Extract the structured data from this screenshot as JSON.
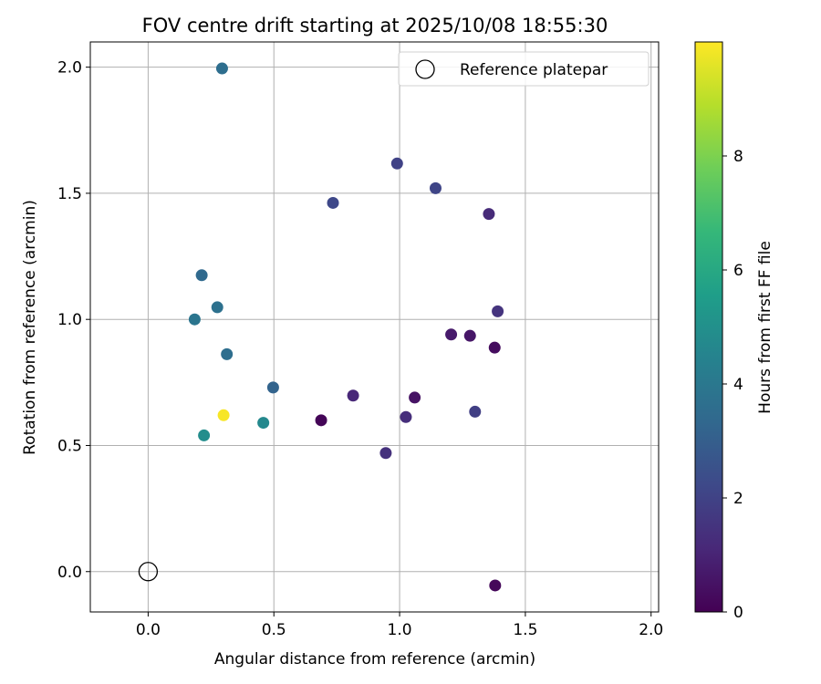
{
  "chart_data": {
    "type": "scatter",
    "title": "FOV centre drift starting at 2025/10/08 18:55:30",
    "xlabel": "Angular distance from reference (arcmin)",
    "ylabel": "Rotation from reference (arcmin)",
    "xlim": [
      -0.23,
      2.03
    ],
    "ylim": [
      -0.16,
      2.1
    ],
    "xticks": [
      0.0,
      0.5,
      1.0,
      1.5,
      2.0
    ],
    "xtick_labels": [
      "0.0",
      "0.5",
      "1.0",
      "1.5",
      "2.0"
    ],
    "yticks": [
      0.0,
      0.5,
      1.0,
      1.5,
      2.0
    ],
    "ytick_labels": [
      "0.0",
      "0.5",
      "1.0",
      "1.5",
      "2.0"
    ],
    "grid": true,
    "legend": {
      "location": "upper-right",
      "entries": [
        "Reference platepar"
      ]
    },
    "reference_point": {
      "x": 0.0,
      "y": 0.0,
      "label": "Reference platepar"
    },
    "colorbar": {
      "label": "Hours from first FF file",
      "colormap": "viridis",
      "range": [
        0,
        10
      ],
      "ticks": [
        0,
        2,
        4,
        6,
        8
      ],
      "tick_labels": [
        "0",
        "2",
        "4",
        "6",
        "8"
      ],
      "colors": [
        "#440154",
        "#482878",
        "#3e4989",
        "#31688e",
        "#26828e",
        "#1f9e89",
        "#35b779",
        "#6ece58",
        "#b5de2b",
        "#fde725"
      ]
    },
    "points": [
      {
        "x": 0.294,
        "y": 1.995,
        "hours": 3.6
      },
      {
        "x": 0.99,
        "y": 1.618,
        "hours": 2.0
      },
      {
        "x": 1.143,
        "y": 1.52,
        "hours": 2.1
      },
      {
        "x": 0.735,
        "y": 1.462,
        "hours": 2.2
      },
      {
        "x": 1.355,
        "y": 1.418,
        "hours": 1.2
      },
      {
        "x": 0.213,
        "y": 1.175,
        "hours": 3.4
      },
      {
        "x": 0.275,
        "y": 1.048,
        "hours": 3.7
      },
      {
        "x": 0.185,
        "y": 1.0,
        "hours": 3.9
      },
      {
        "x": 1.39,
        "y": 1.032,
        "hours": 1.5
      },
      {
        "x": 1.205,
        "y": 0.94,
        "hours": 0.7
      },
      {
        "x": 1.28,
        "y": 0.935,
        "hours": 0.6
      },
      {
        "x": 1.378,
        "y": 0.888,
        "hours": 0.3
      },
      {
        "x": 0.313,
        "y": 0.862,
        "hours": 3.6
      },
      {
        "x": 0.497,
        "y": 0.73,
        "hours": 3.2
      },
      {
        "x": 0.815,
        "y": 0.698,
        "hours": 1.1
      },
      {
        "x": 1.06,
        "y": 0.69,
        "hours": 0.5
      },
      {
        "x": 1.3,
        "y": 0.634,
        "hours": 1.9
      },
      {
        "x": 0.3,
        "y": 0.62,
        "hours": 9.9
      },
      {
        "x": 1.025,
        "y": 0.613,
        "hours": 1.3
      },
      {
        "x": 0.688,
        "y": 0.6,
        "hours": 0.1
      },
      {
        "x": 0.458,
        "y": 0.59,
        "hours": 4.7
      },
      {
        "x": 0.222,
        "y": 0.54,
        "hours": 4.9
      },
      {
        "x": 0.945,
        "y": 0.47,
        "hours": 1.4
      },
      {
        "x": 1.38,
        "y": -0.055,
        "hours": 0.2
      }
    ]
  }
}
